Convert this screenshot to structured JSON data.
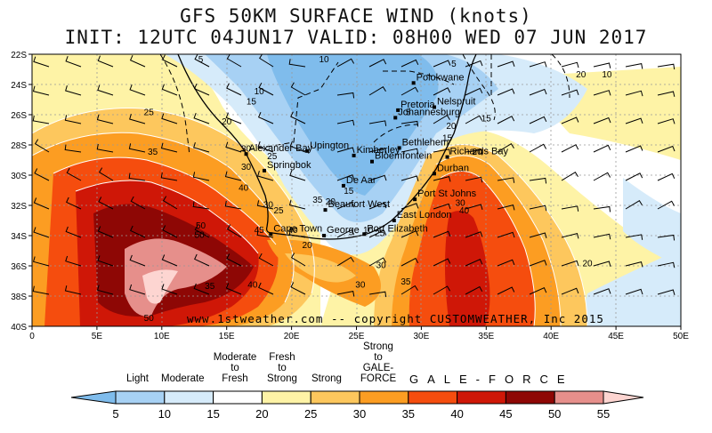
{
  "title": {
    "line1": "GFS 50KM SURFACE WIND (knots)",
    "line2": "INIT: 12UTC 04JUN17  VALID: 08H00 WED 07 JUN 2017"
  },
  "watermark": "www.1stweather.com -- copyright CUSTOMWEATHER, Inc 2015",
  "map": {
    "lon_range": [
      0,
      50
    ],
    "lat_range": [
      -40,
      -22
    ],
    "x_ticks": [
      "0",
      "5E",
      "10E",
      "15E",
      "20E",
      "25E",
      "30E",
      "35E",
      "40E",
      "45E",
      "50E"
    ],
    "y_ticks": [
      "22S",
      "24S",
      "26S",
      "28S",
      "30S",
      "32S",
      "34S",
      "36S",
      "38S",
      "40S"
    ],
    "grid": "dotted",
    "cities": [
      {
        "name": "Polokwane",
        "lon": 29.4,
        "lat": -23.9
      },
      {
        "name": "Pretoria",
        "lon": 28.2,
        "lat": -25.7
      },
      {
        "name": "Nelspruit",
        "lon": 31.0,
        "lat": -25.5
      },
      {
        "name": "Johannesburg",
        "lon": 28.0,
        "lat": -26.2
      },
      {
        "name": "Bethlehem",
        "lon": 28.3,
        "lat": -28.2
      },
      {
        "name": "Upington",
        "lon": 21.2,
        "lat": -28.4
      },
      {
        "name": "Kimberley",
        "lon": 24.8,
        "lat": -28.7
      },
      {
        "name": "Alexander Bay",
        "lon": 16.5,
        "lat": -28.6
      },
      {
        "name": "Richards Bay",
        "lon": 32.0,
        "lat": -28.8
      },
      {
        "name": "Bloemfontein",
        "lon": 26.2,
        "lat": -29.1
      },
      {
        "name": "Springbok",
        "lon": 17.9,
        "lat": -29.7
      },
      {
        "name": "Durban",
        "lon": 31.0,
        "lat": -29.9
      },
      {
        "name": "De Aar",
        "lon": 24.0,
        "lat": -30.7
      },
      {
        "name": "Beaufort West",
        "lon": 22.6,
        "lat": -32.3
      },
      {
        "name": "Port St Johns",
        "lon": 29.5,
        "lat": -31.6
      },
      {
        "name": "East London",
        "lon": 27.9,
        "lat": -33.0
      },
      {
        "name": "Cape Town",
        "lon": 18.4,
        "lat": -33.9
      },
      {
        "name": "George",
        "lon": 22.5,
        "lat": -34.0
      },
      {
        "name": "Port Elizabeth",
        "lon": 25.6,
        "lat": -33.9
      }
    ],
    "contour_labels": [
      {
        "text": "5",
        "lon": 13,
        "lat": -22.3
      },
      {
        "text": "10",
        "lon": 22.5,
        "lat": -22.3
      },
      {
        "text": "5",
        "lon": 32.5,
        "lat": -22.6
      },
      {
        "text": "20",
        "lon": 42.3,
        "lat": -23.3
      },
      {
        "text": "10",
        "lon": 44.3,
        "lat": -23.3
      },
      {
        "text": "10",
        "lon": 17.5,
        "lat": -24.4
      },
      {
        "text": "15",
        "lon": 16.9,
        "lat": -25.1
      },
      {
        "text": "25",
        "lon": 9,
        "lat": -25.8
      },
      {
        "text": "20",
        "lon": 15,
        "lat": -26.4
      },
      {
        "text": "5",
        "lon": 29,
        "lat": -25.8
      },
      {
        "text": "15",
        "lon": 35,
        "lat": -26.2
      },
      {
        "text": "20",
        "lon": 32.3,
        "lat": -26.7
      },
      {
        "text": "15",
        "lon": 32,
        "lat": -27.5
      },
      {
        "text": "30",
        "lon": 16.5,
        "lat": -28.2
      },
      {
        "text": "25",
        "lon": 18.5,
        "lat": -28.7
      },
      {
        "text": "35",
        "lon": 9.3,
        "lat": -28.4
      },
      {
        "text": "20",
        "lon": 34.3,
        "lat": -28.4
      },
      {
        "text": "30",
        "lon": 16.5,
        "lat": -29.4
      },
      {
        "text": "40",
        "lon": 16.3,
        "lat": -30.8
      },
      {
        "text": "15",
        "lon": 24.4,
        "lat": -31
      },
      {
        "text": "30",
        "lon": 18.2,
        "lat": -31.9
      },
      {
        "text": "25",
        "lon": 19,
        "lat": -32.3
      },
      {
        "text": "35",
        "lon": 22,
        "lat": -31.6
      },
      {
        "text": "20",
        "lon": 23,
        "lat": -31.7
      },
      {
        "text": "30",
        "lon": 33,
        "lat": -31.8
      },
      {
        "text": "40",
        "lon": 33.3,
        "lat": -32.3
      },
      {
        "text": "50",
        "lon": 13,
        "lat": -33.3
      },
      {
        "text": "45",
        "lon": 17.5,
        "lat": -33.6
      },
      {
        "text": "50",
        "lon": 12.9,
        "lat": -33.9
      },
      {
        "text": "40",
        "lon": 20.1,
        "lat": -33.6
      },
      {
        "text": "20",
        "lon": 21.2,
        "lat": -34.6
      },
      {
        "text": "10",
        "lon": 25.9,
        "lat": -33.6
      },
      {
        "text": "25",
        "lon": 26.8,
        "lat": -33.8
      },
      {
        "text": "30",
        "lon": 26.9,
        "lat": -35.9
      },
      {
        "text": "35",
        "lon": 28.8,
        "lat": -37
      },
      {
        "text": "30",
        "lon": 25.3,
        "lat": -37.2
      },
      {
        "text": "35",
        "lon": 13.7,
        "lat": -37.3
      },
      {
        "text": "40",
        "lon": 17,
        "lat": -37.2
      },
      {
        "text": "20",
        "lon": 42.8,
        "lat": -35.8
      },
      {
        "text": "50",
        "lon": 9,
        "lat": -39.4
      }
    ]
  },
  "colorbar": {
    "ticks": [
      "5",
      "10",
      "15",
      "20",
      "25",
      "30",
      "35",
      "40",
      "45",
      "50",
      "55"
    ],
    "colors": [
      "#7fbcec",
      "#a7d1f4",
      "#d6ebfa",
      "#ffffff",
      "#fef3a6",
      "#fdc75d",
      "#fc9d22",
      "#f54d0e",
      "#cf1707",
      "#8e0705",
      "#e68f8b",
      "#fdd5d1"
    ],
    "categories": [
      {
        "label": "Light",
        "lon": null
      },
      {
        "label": "Moderate",
        "lon": null
      },
      {
        "label": "Moderate\nto\nFresh",
        "lon": null
      },
      {
        "label": "Fresh\nto\nStrong",
        "lon": null
      },
      {
        "label": "Strong",
        "lon": null
      },
      {
        "label": "Strong\nto\nGALE-\nFORCE",
        "lon": null
      }
    ],
    "gale_label": "GALE-FORCE"
  }
}
